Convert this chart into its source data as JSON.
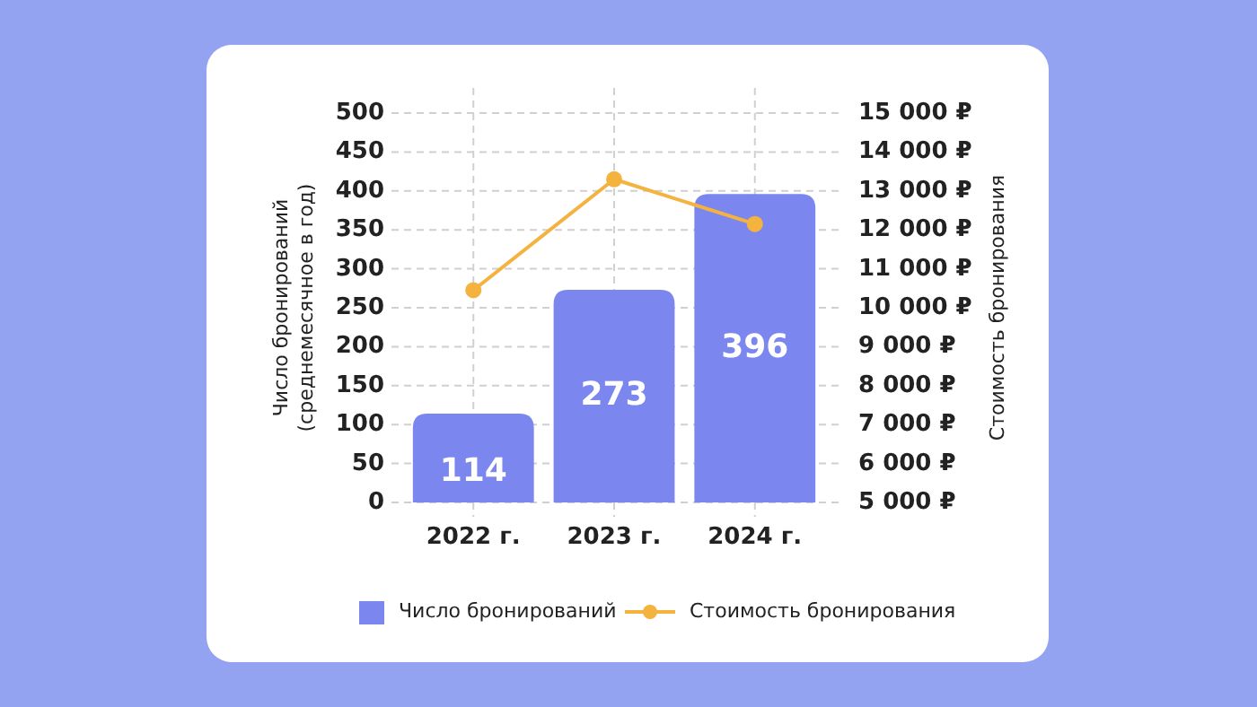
{
  "chart_data": {
    "type": "bar",
    "categories": [
      "2022 г.",
      "2023 г.",
      "2024 г."
    ],
    "series": [
      {
        "name": "Число бронирований",
        "color": "#7b87ee",
        "values": [
          114,
          273,
          396
        ],
        "value_labels": [
          "114",
          "273",
          "396"
        ]
      },
      {
        "name": "Стоимость бронирования",
        "type": "line",
        "axis": "y2",
        "color": "#f4b23e",
        "marker": "circle",
        "values": [
          10450,
          13300,
          12150
        ]
      }
    ],
    "ylabel": "Число бронирований (среднемесячное в год)",
    "y2label": "Стоимость бронирования",
    "ylim": [
      0,
      500
    ],
    "yticks": [
      0,
      50,
      100,
      150,
      200,
      250,
      300,
      350,
      400,
      450,
      500
    ],
    "y2lim": [
      5000,
      15000
    ],
    "y2ticks": [
      {
        "value": 5000,
        "label": "5 000 ₽"
      },
      {
        "value": 6000,
        "label": "6 000 ₽"
      },
      {
        "value": 7000,
        "label": "7 000 ₽"
      },
      {
        "value": 8000,
        "label": "8 000 ₽"
      },
      {
        "value": 9000,
        "label": "9 000 ₽"
      },
      {
        "value": 10000,
        "label": "10 000 ₽"
      },
      {
        "value": 11000,
        "label": "11 000 ₽"
      },
      {
        "value": 12000,
        "label": "12 000 ₽"
      },
      {
        "value": 13000,
        "label": "13 000 ₽"
      },
      {
        "value": 14000,
        "label": "14 000 ₽"
      },
      {
        "value": 15000,
        "label": "15 000 ₽"
      }
    ],
    "grid": true,
    "legend": "bottom"
  }
}
